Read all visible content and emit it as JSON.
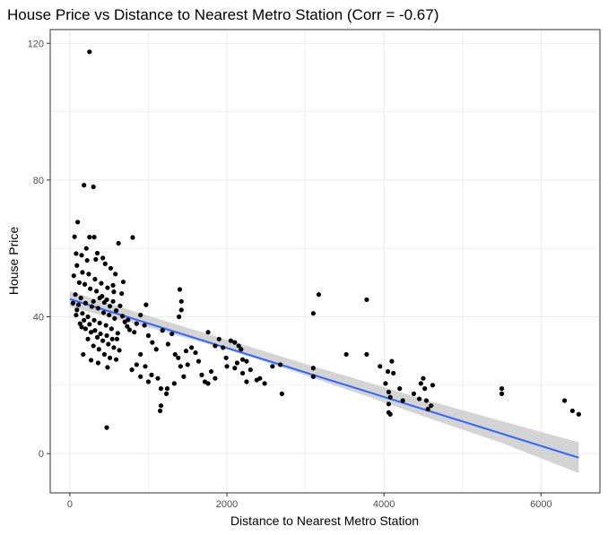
{
  "chart_data": {
    "type": "scatter",
    "title": "House Price vs Distance to Nearest Metro Station (Corr = -0.67)",
    "xlabel": "Distance to Nearest Metro Station",
    "ylabel": "House Price",
    "xlim": [
      -250,
      6750
    ],
    "ylim": [
      -11.5,
      124
    ],
    "x_ticks": [
      0,
      2000,
      4000,
      6000
    ],
    "y_ticks": [
      0,
      40,
      80,
      120
    ],
    "x_minor": [
      1000,
      3000,
      5000
    ],
    "y_minor": [
      20,
      60,
      100
    ],
    "grid": true,
    "colors": {
      "points": "#000000",
      "trend_line": "#3366ff",
      "confidence_band": "#cccccc",
      "grid": "#ebebeb",
      "panel_border": "#333333"
    },
    "points": [
      [
        250,
        117.5
      ],
      [
        470,
        7.6
      ],
      [
        180,
        78.5
      ],
      [
        300,
        78
      ],
      [
        100,
        67.7
      ],
      [
        800,
        63.2
      ],
      [
        250,
        63.3
      ],
      [
        310,
        63.3
      ],
      [
        620,
        61.5
      ],
      [
        60,
        63.4
      ],
      [
        80,
        58.5
      ],
      [
        150,
        58
      ],
      [
        220,
        56.5
      ],
      [
        330,
        56.8
      ],
      [
        450,
        55.5
      ],
      [
        520,
        54.2
      ],
      [
        580,
        52.5
      ],
      [
        680,
        50.2
      ],
      [
        50,
        52
      ],
      [
        120,
        50
      ],
      [
        190,
        49.5
      ],
      [
        260,
        48.2
      ],
      [
        340,
        47.5
      ],
      [
        410,
        46
      ],
      [
        470,
        45
      ],
      [
        550,
        44.5
      ],
      [
        640,
        43.2
      ],
      [
        70,
        46.5
      ],
      [
        140,
        45.5
      ],
      [
        200,
        44
      ],
      [
        280,
        43
      ],
      [
        360,
        42.5
      ],
      [
        430,
        41.2
      ],
      [
        500,
        40.5
      ],
      [
        570,
        39.5
      ],
      [
        90,
        42
      ],
      [
        160,
        41
      ],
      [
        230,
        40
      ],
      [
        310,
        39
      ],
      [
        380,
        38.2
      ],
      [
        460,
        37.5
      ],
      [
        530,
        36.5
      ],
      [
        610,
        35.2
      ],
      [
        40,
        44
      ],
      [
        110,
        43.5
      ],
      [
        180,
        39
      ],
      [
        250,
        37.8
      ],
      [
        320,
        36
      ],
      [
        390,
        35
      ],
      [
        470,
        34.5
      ],
      [
        540,
        33.5
      ],
      [
        130,
        38
      ],
      [
        200,
        36.5
      ],
      [
        270,
        35.5
      ],
      [
        350,
        34
      ],
      [
        420,
        33
      ],
      [
        490,
        32
      ],
      [
        560,
        31
      ],
      [
        630,
        30.2
      ],
      [
        80,
        40.5
      ],
      [
        150,
        37
      ],
      [
        230,
        33.5
      ],
      [
        300,
        31.5
      ],
      [
        370,
        30.5
      ],
      [
        440,
        29
      ],
      [
        510,
        28
      ],
      [
        590,
        27.5
      ],
      [
        170,
        29
      ],
      [
        270,
        27.3
      ],
      [
        360,
        26.5
      ],
      [
        480,
        25.2
      ],
      [
        600,
        33.5
      ],
      [
        700,
        38.5
      ],
      [
        760,
        36.2
      ],
      [
        90,
        55
      ],
      [
        160,
        53
      ],
      [
        240,
        52.5
      ],
      [
        320,
        51
      ],
      [
        400,
        49.8
      ],
      [
        480,
        48.5
      ],
      [
        560,
        47.3
      ],
      [
        660,
        46.8
      ],
      [
        210,
        60
      ],
      [
        350,
        58.6
      ],
      [
        420,
        57.2
      ],
      [
        550,
        49.2
      ],
      [
        730,
        37.2
      ],
      [
        820,
        35.5
      ],
      [
        900,
        40.5
      ],
      [
        970,
        43.5
      ],
      [
        300,
        44.5
      ],
      [
        380,
        45.5
      ],
      [
        440,
        44.2
      ],
      [
        510,
        43.1
      ],
      [
        590,
        41.8
      ],
      [
        670,
        40.2
      ],
      [
        740,
        39.1
      ],
      [
        850,
        38
      ],
      [
        950,
        37.5
      ],
      [
        1000,
        34.5
      ],
      [
        1050,
        32.5
      ],
      [
        1100,
        30.5
      ],
      [
        900,
        29
      ],
      [
        850,
        26
      ],
      [
        790,
        24.5
      ],
      [
        960,
        25.5
      ],
      [
        1040,
        23
      ],
      [
        1120,
        22
      ],
      [
        1160,
        19
      ],
      [
        1160,
        14
      ],
      [
        1150,
        12.5
      ],
      [
        1230,
        17.5
      ],
      [
        1240,
        19
      ],
      [
        1000,
        21
      ],
      [
        900,
        22.5
      ],
      [
        1180,
        36
      ],
      [
        1300,
        35
      ],
      [
        1250,
        32
      ],
      [
        1340,
        29
      ],
      [
        1380,
        28
      ],
      [
        1410,
        25.5
      ],
      [
        1400,
        48
      ],
      [
        1420,
        44.5
      ],
      [
        1390,
        40
      ],
      [
        1420,
        42
      ],
      [
        1450,
        22.5
      ],
      [
        1330,
        20.5
      ],
      [
        1500,
        26
      ],
      [
        1480,
        30
      ],
      [
        1550,
        31
      ],
      [
        1600,
        29.5
      ],
      [
        1640,
        27
      ],
      [
        1680,
        23
      ],
      [
        1720,
        21
      ],
      [
        1760,
        20.5
      ],
      [
        1800,
        24
      ],
      [
        1850,
        22
      ],
      [
        1760,
        35.5
      ],
      [
        1850,
        31.5
      ],
      [
        1900,
        33.5
      ],
      [
        1950,
        31
      ],
      [
        1990,
        28
      ],
      [
        2000,
        25.5
      ],
      [
        2050,
        33
      ],
      [
        2100,
        32.5
      ],
      [
        2150,
        31.5
      ],
      [
        2180,
        30.5
      ],
      [
        2200,
        27.5
      ],
      [
        2130,
        26.5
      ],
      [
        2100,
        25
      ],
      [
        2250,
        27
      ],
      [
        2200,
        23.5
      ],
      [
        2300,
        24.5
      ],
      [
        2380,
        21.5
      ],
      [
        2420,
        22
      ],
      [
        2480,
        20.5
      ],
      [
        2250,
        21
      ],
      [
        2580,
        25.5
      ],
      [
        2680,
        26
      ],
      [
        2700,
        17.5
      ],
      [
        3100,
        25
      ],
      [
        3100,
        22.5
      ],
      [
        3100,
        41
      ],
      [
        3170,
        46.5
      ],
      [
        3520,
        29
      ],
      [
        3780,
        29
      ],
      [
        3780,
        45
      ],
      [
        3950,
        25.5
      ],
      [
        4020,
        20.5
      ],
      [
        4060,
        18
      ],
      [
        4080,
        16.5
      ],
      [
        4060,
        14.5
      ],
      [
        4060,
        12
      ],
      [
        4080,
        11.5
      ],
      [
        4050,
        24
      ],
      [
        4100,
        27
      ],
      [
        4120,
        23.5
      ],
      [
        4200,
        19
      ],
      [
        4240,
        15.5
      ],
      [
        4380,
        17.5
      ],
      [
        4450,
        16
      ],
      [
        4470,
        20.5
      ],
      [
        4500,
        22
      ],
      [
        4520,
        19
      ],
      [
        4540,
        15.5
      ],
      [
        4560,
        13
      ],
      [
        4600,
        14
      ],
      [
        4620,
        20
      ],
      [
        5500,
        19
      ],
      [
        5500,
        17.5
      ],
      [
        6300,
        15.5
      ],
      [
        6400,
        12.5
      ],
      [
        6480,
        11.5
      ]
    ],
    "trend_line": {
      "x1": 0,
      "y1": 45.2,
      "x2": 6480,
      "y2": -1.2
    },
    "confidence_band": {
      "x": [
        0,
        1000,
        2000,
        3000,
        3800,
        4500,
        5500,
        6480
      ],
      "upper": [
        47.5,
        40.3,
        33.3,
        26.2,
        20.8,
        15.9,
        9.5,
        3.3
      ],
      "lower": [
        42.9,
        36.9,
        30.5,
        22.9,
        16.6,
        10.9,
        3.1,
        -5.7
      ]
    }
  }
}
